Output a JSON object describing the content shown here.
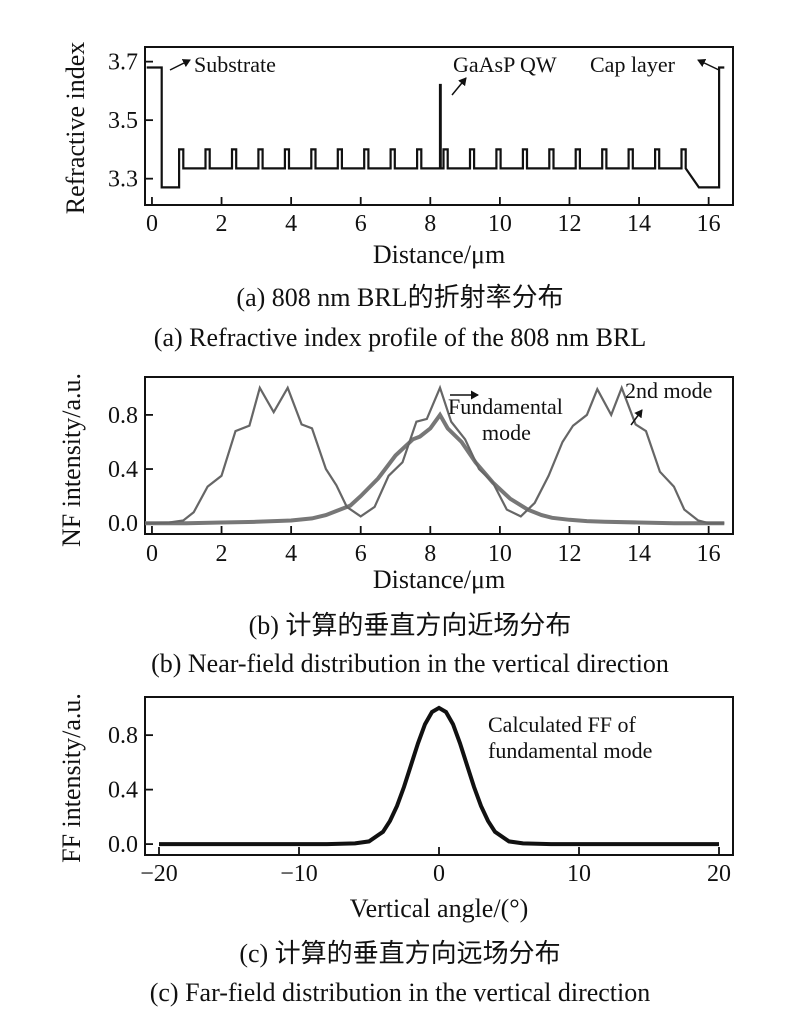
{
  "chart_data": [
    {
      "type": "line",
      "panel": "a",
      "caption_cn": "(a) 808 nm BRL的折射率分布",
      "caption_en": "(a) Refractive index profile of the 808 nm BRL",
      "xlabel": "Distance/μm",
      "ylabel": "Refractive index",
      "xlim": [
        -0.2,
        16.7
      ],
      "ylim": [
        3.21,
        3.75
      ],
      "xticks": [
        0,
        2,
        4,
        6,
        8,
        10,
        12,
        14,
        16
      ],
      "xtick_labels": [
        "0",
        "2",
        "4",
        "6",
        "8",
        "10",
        "12",
        "14",
        "16"
      ],
      "yticks": [
        3.3,
        3.5,
        3.7
      ],
      "ytick_labels": [
        "3.3",
        "3.5",
        "3.7"
      ],
      "annotations": [
        {
          "text": "Substrate",
          "x": 0.3,
          "y": 3.69
        },
        {
          "text": "GaAsP QW",
          "x": 8.25,
          "y": 3.62
        },
        {
          "text": "Cap layer",
          "x": 16.2,
          "y": 3.69
        }
      ],
      "profile": {
        "substrate_n": 3.68,
        "substrate_end": 0.28,
        "cladding_n": 3.27,
        "cladding_end": 0.78,
        "low_n": 3.335,
        "high_n": 3.4,
        "period": 0.76,
        "high_width": 0.12,
        "first_high": 0.78,
        "last_high": 15.6,
        "qw_x": 8.28,
        "qw_n": 3.62,
        "top_cladding_start": 15.72,
        "top_cladding_end": 16.3,
        "cap_n": 3.68,
        "x_end": 16.45
      }
    },
    {
      "type": "line",
      "panel": "b",
      "caption_cn": "(b) 计算的垂直方向近场分布",
      "caption_en": "(b) Near-field distribution in the vertical direction",
      "xlabel": "Distance/μm",
      "ylabel": "NF intensity/a.u.",
      "xlim": [
        -0.2,
        16.7
      ],
      "ylim": [
        -0.08,
        1.08
      ],
      "xticks": [
        0,
        2,
        4,
        6,
        8,
        10,
        12,
        14,
        16
      ],
      "xtick_labels": [
        "0",
        "2",
        "4",
        "6",
        "8",
        "10",
        "12",
        "14",
        "16"
      ],
      "yticks": [
        0.0,
        0.4,
        0.8
      ],
      "ytick_labels": [
        "0.0",
        "0.4",
        "0.8"
      ],
      "annotations": [
        {
          "text": "Fundamental",
          "x": 8.35,
          "y": 0.97
        },
        {
          "text": "mode",
          "x": 9.0,
          "y": 0.82
        },
        {
          "text": "2nd mode",
          "x": 13.6,
          "y": 0.95
        }
      ],
      "series": [
        {
          "name": "Fundamental mode",
          "x": [
            -0.2,
            0.0,
            1.0,
            2.0,
            3.0,
            4.0,
            4.6,
            5.0,
            5.3,
            5.7,
            6.0,
            6.5,
            7.0,
            7.5,
            7.7,
            8.0,
            8.28,
            8.5,
            8.9,
            9.3,
            9.8,
            10.3,
            10.8,
            11.2,
            11.5,
            12.0,
            12.5,
            13.0,
            14.0,
            15.0,
            16.0,
            16.45
          ],
          "y": [
            0.0,
            0.0,
            0.0,
            0.005,
            0.01,
            0.02,
            0.035,
            0.06,
            0.09,
            0.13,
            0.2,
            0.33,
            0.5,
            0.62,
            0.64,
            0.7,
            0.8,
            0.7,
            0.6,
            0.45,
            0.3,
            0.18,
            0.1,
            0.06,
            0.04,
            0.025,
            0.015,
            0.01,
            0.005,
            0.0,
            0.0,
            0.0
          ]
        },
        {
          "name": "2nd mode",
          "x": [
            -0.2,
            0.0,
            0.5,
            0.9,
            1.2,
            1.6,
            2.0,
            2.4,
            2.8,
            3.1,
            3.5,
            3.9,
            4.3,
            4.6,
            5.0,
            5.3,
            5.6,
            6.0,
            6.4,
            6.8,
            7.2,
            7.6,
            7.9,
            8.28,
            8.6,
            9.0,
            9.4,
            9.8,
            10.2,
            10.6,
            11.0,
            11.4,
            11.8,
            12.1,
            12.5,
            12.8,
            13.2,
            13.5,
            13.9,
            14.2,
            14.6,
            15.0,
            15.3,
            15.7,
            16.0,
            16.45
          ],
          "y": [
            0.0,
            0.0,
            0.005,
            0.02,
            0.08,
            0.27,
            0.35,
            0.68,
            0.72,
            1.0,
            0.82,
            1.0,
            0.73,
            0.7,
            0.4,
            0.28,
            0.12,
            0.05,
            0.12,
            0.35,
            0.45,
            0.75,
            0.77,
            1.0,
            0.75,
            0.62,
            0.4,
            0.3,
            0.1,
            0.05,
            0.15,
            0.35,
            0.6,
            0.72,
            0.8,
            0.99,
            0.8,
            1.0,
            0.73,
            0.68,
            0.38,
            0.27,
            0.1,
            0.02,
            0.0,
            0.0
          ]
        }
      ]
    },
    {
      "type": "line",
      "panel": "c",
      "caption_cn": "(c) 计算的垂直方向远场分布",
      "caption_en": "(c) Far-field distribution in the vertical direction",
      "xlabel": "Vertical angle/(°)",
      "ylabel": "FF intensity/a.u.",
      "xlim": [
        -21,
        21
      ],
      "ylim": [
        -0.08,
        1.08
      ],
      "xticks": [
        -20,
        -10,
        0,
        10,
        20
      ],
      "xtick_labels": [
        "−20",
        "−10",
        "0",
        "10",
        "20"
      ],
      "yticks": [
        0.0,
        0.4,
        0.8
      ],
      "ytick_labels": [
        "0.0",
        "0.4",
        "0.8"
      ],
      "annotations": [
        {
          "text": "Calculated FF of",
          "x": 3.8,
          "y": 0.86
        },
        {
          "text": "fundamental mode",
          "x": 3.8,
          "y": 0.68
        }
      ],
      "series": [
        {
          "name": "Calculated FF of fundamental mode",
          "x": [
            -20,
            -8,
            -6,
            -5,
            -4,
            -3.5,
            -3,
            -2.5,
            -2,
            -1.5,
            -1,
            -0.5,
            0,
            0.5,
            1,
            1.5,
            2,
            2.5,
            3,
            3.5,
            4,
            5,
            6,
            8,
            20
          ],
          "y": [
            0.0,
            0.0,
            0.005,
            0.02,
            0.09,
            0.17,
            0.28,
            0.42,
            0.58,
            0.74,
            0.88,
            0.97,
            1.0,
            0.97,
            0.88,
            0.74,
            0.58,
            0.42,
            0.28,
            0.17,
            0.09,
            0.02,
            0.005,
            0.0,
            0.0
          ]
        }
      ]
    }
  ]
}
